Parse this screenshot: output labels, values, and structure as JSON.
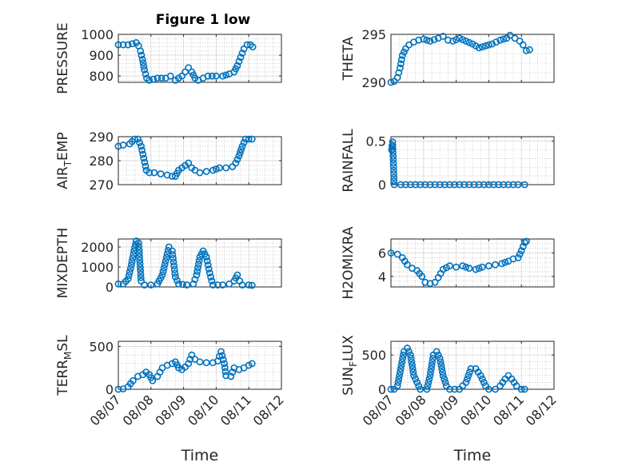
{
  "figure": {
    "title": "Figure 1 low"
  },
  "colors": {
    "marker": "#0072BD",
    "axis": "#262626",
    "grid": "#b0b0b0"
  },
  "chart_data": [
    {
      "type": "scatter",
      "panel": "left-1",
      "title": "Figure 1 low",
      "ylabel": "PRESSURE",
      "ylabel_sub": "",
      "xlim": [
        0,
        5
      ],
      "ylim": [
        770,
        1000
      ],
      "yticks": [
        800,
        900,
        1000
      ],
      "ytick_labels": [
        "800",
        "900",
        "1000"
      ],
      "xticks": [
        0,
        1,
        2,
        3,
        4,
        5
      ],
      "xtick_labels": [],
      "xlabel": "",
      "grid": true,
      "minor_grid": true,
      "points": [
        [
          0.0,
          950
        ],
        [
          0.3,
          950
        ],
        [
          0.55,
          960
        ],
        [
          0.62,
          945
        ],
        [
          0.68,
          920
        ],
        [
          0.74,
          880
        ],
        [
          0.8,
          830
        ],
        [
          0.87,
          790
        ],
        [
          0.95,
          780
        ],
        [
          1.2,
          790
        ],
        [
          1.45,
          790
        ],
        [
          1.6,
          800
        ],
        [
          1.75,
          780
        ],
        [
          1.85,
          790
        ],
        [
          1.95,
          800
        ],
        [
          2.05,
          820
        ],
        [
          2.15,
          840
        ],
        [
          2.25,
          820
        ],
        [
          2.35,
          790
        ],
        [
          2.45,
          780
        ],
        [
          2.6,
          790
        ],
        [
          2.75,
          800
        ],
        [
          3.0,
          800
        ],
        [
          3.2,
          800
        ],
        [
          3.4,
          810
        ],
        [
          3.55,
          820
        ],
        [
          3.65,
          850
        ],
        [
          3.75,
          890
        ],
        [
          3.85,
          930
        ],
        [
          3.95,
          950
        ],
        [
          4.05,
          950
        ],
        [
          4.12,
          940
        ]
      ]
    },
    {
      "type": "scatter",
      "panel": "right-1",
      "ylabel": "THETA",
      "ylabel_sub": "",
      "xlim": [
        0,
        5
      ],
      "ylim": [
        290,
        295
      ],
      "yticks": [
        290,
        295
      ],
      "ytick_labels": [
        "290",
        "295"
      ],
      "xticks": [
        0,
        1,
        2,
        3,
        4,
        5
      ],
      "xtick_labels": [],
      "xlabel": "",
      "grid": true,
      "minor_grid": true,
      "points": [
        [
          0.0,
          290
        ],
        [
          0.1,
          290.1
        ],
        [
          0.2,
          290.5
        ],
        [
          0.28,
          291.5
        ],
        [
          0.35,
          292.8
        ],
        [
          0.45,
          293.5
        ],
        [
          0.55,
          293.9
        ],
        [
          0.7,
          294.2
        ],
        [
          0.85,
          294.4
        ],
        [
          1.0,
          294.5
        ],
        [
          1.2,
          294.3
        ],
        [
          1.45,
          294.6
        ],
        [
          1.6,
          294.8
        ],
        [
          1.75,
          294.4
        ],
        [
          1.9,
          294.3
        ],
        [
          2.1,
          294.6
        ],
        [
          2.3,
          294.3
        ],
        [
          2.5,
          294.0
        ],
        [
          2.7,
          293.6
        ],
        [
          2.9,
          293.8
        ],
        [
          3.1,
          294.0
        ],
        [
          3.35,
          294.4
        ],
        [
          3.55,
          294.6
        ],
        [
          3.65,
          294.9
        ],
        [
          3.8,
          294.6
        ],
        [
          3.95,
          294.3
        ],
        [
          4.05,
          293.9
        ],
        [
          4.15,
          293.3
        ],
        [
          4.25,
          293.4
        ]
      ]
    },
    {
      "type": "scatter",
      "panel": "left-2",
      "ylabel": "AIR",
      "ylabel_sub": "T",
      "ylabel_tail": "EMP",
      "xlim": [
        0,
        5
      ],
      "ylim": [
        270,
        290
      ],
      "yticks": [
        270,
        280,
        290
      ],
      "ytick_labels": [
        "270",
        "280",
        "290"
      ],
      "xticks": [
        0,
        1,
        2,
        3,
        4,
        5
      ],
      "xtick_labels": [],
      "xlabel": "",
      "grid": true,
      "minor_grid": true,
      "points": [
        [
          0.0,
          286
        ],
        [
          0.15,
          286.5
        ],
        [
          0.35,
          287
        ],
        [
          0.5,
          289
        ],
        [
          0.6,
          289
        ],
        [
          0.7,
          286
        ],
        [
          0.78,
          281
        ],
        [
          0.86,
          276
        ],
        [
          0.95,
          275
        ],
        [
          1.1,
          275
        ],
        [
          1.3,
          274.5
        ],
        [
          1.5,
          274
        ],
        [
          1.65,
          273.5
        ],
        [
          1.75,
          273.5
        ],
        [
          1.85,
          276
        ],
        [
          1.95,
          277
        ],
        [
          2.05,
          278
        ],
        [
          2.15,
          279
        ],
        [
          2.25,
          277
        ],
        [
          2.35,
          276
        ],
        [
          2.5,
          275
        ],
        [
          2.7,
          275.5
        ],
        [
          2.9,
          276
        ],
        [
          3.1,
          277
        ],
        [
          3.3,
          277
        ],
        [
          3.5,
          277.5
        ],
        [
          3.6,
          279
        ],
        [
          3.7,
          282
        ],
        [
          3.8,
          286
        ],
        [
          3.9,
          289
        ],
        [
          4.0,
          289
        ],
        [
          4.1,
          289
        ]
      ]
    },
    {
      "type": "scatter",
      "panel": "right-2",
      "ylabel": "RAINFALL",
      "ylabel_sub": "",
      "xlim": [
        0,
        5
      ],
      "ylim": [
        0,
        0.55
      ],
      "yticks": [
        0,
        0.5
      ],
      "ytick_labels": [
        "0",
        "0.5"
      ],
      "xticks": [
        0,
        1,
        2,
        3,
        4,
        5
      ],
      "xtick_labels": [],
      "xlabel": "",
      "grid": true,
      "minor_grid": true,
      "points": [
        [
          0.02,
          0.4
        ],
        [
          0.05,
          0.49
        ],
        [
          0.1,
          0
        ],
        [
          0.3,
          0
        ],
        [
          0.6,
          0
        ],
        [
          0.9,
          0
        ],
        [
          1.2,
          0
        ],
        [
          1.5,
          0
        ],
        [
          1.8,
          0
        ],
        [
          2.1,
          0
        ],
        [
          2.4,
          0
        ],
        [
          2.7,
          0
        ],
        [
          3.0,
          0
        ],
        [
          3.3,
          0
        ],
        [
          3.6,
          0
        ],
        [
          3.9,
          0
        ],
        [
          4.1,
          0
        ]
      ]
    },
    {
      "type": "scatter",
      "panel": "left-3",
      "ylabel": "MIXDEPTH",
      "ylabel_sub": "",
      "xlim": [
        0,
        5
      ],
      "ylim": [
        0,
        2400
      ],
      "yticks": [
        0,
        1000,
        2000
      ],
      "ytick_labels": [
        "0",
        "1000",
        "2000"
      ],
      "xticks": [
        0,
        1,
        2,
        3,
        4,
        5
      ],
      "xtick_labels": [],
      "xlabel": "",
      "grid": true,
      "minor_grid": true,
      "points": [
        [
          0.0,
          150
        ],
        [
          0.15,
          150
        ],
        [
          0.3,
          400
        ],
        [
          0.4,
          1100
        ],
        [
          0.48,
          1800
        ],
        [
          0.55,
          2300
        ],
        [
          0.62,
          2200
        ],
        [
          0.7,
          300
        ],
        [
          0.8,
          100
        ],
        [
          1.0,
          100
        ],
        [
          1.2,
          150
        ],
        [
          1.35,
          600
        ],
        [
          1.45,
          1300
        ],
        [
          1.55,
          2000
        ],
        [
          1.65,
          1800
        ],
        [
          1.75,
          500
        ],
        [
          1.85,
          150
        ],
        [
          2.1,
          100
        ],
        [
          2.3,
          150
        ],
        [
          2.4,
          600
        ],
        [
          2.5,
          1500
        ],
        [
          2.6,
          1800
        ],
        [
          2.7,
          1500
        ],
        [
          2.8,
          700
        ],
        [
          2.9,
          100
        ],
        [
          3.2,
          100
        ],
        [
          3.4,
          150
        ],
        [
          3.55,
          300
        ],
        [
          3.65,
          600
        ],
        [
          3.72,
          300
        ],
        [
          3.8,
          100
        ],
        [
          4.0,
          100
        ],
        [
          4.1,
          80
        ]
      ]
    },
    {
      "type": "scatter",
      "panel": "right-3",
      "ylabel": "H2OMIXRA",
      "ylabel_sub": "",
      "xlim": [
        0,
        5
      ],
      "ylim": [
        3.1,
        7.2
      ],
      "yticks": [
        4,
        6
      ],
      "ytick_labels": [
        "4",
        "6"
      ],
      "xticks": [
        0,
        1,
        2,
        3,
        4,
        5
      ],
      "xtick_labels": [],
      "xlabel": "",
      "grid": true,
      "minor_grid": true,
      "points": [
        [
          0.0,
          6.0
        ],
        [
          0.2,
          5.9
        ],
        [
          0.35,
          5.6
        ],
        [
          0.5,
          5.0
        ],
        [
          0.65,
          4.7
        ],
        [
          0.8,
          4.5
        ],
        [
          0.95,
          4.0
        ],
        [
          1.05,
          3.5
        ],
        [
          1.2,
          3.4
        ],
        [
          1.35,
          3.5
        ],
        [
          1.45,
          3.9
        ],
        [
          1.6,
          4.6
        ],
        [
          1.8,
          4.9
        ],
        [
          2.0,
          4.8
        ],
        [
          2.2,
          4.9
        ],
        [
          2.4,
          4.7
        ],
        [
          2.6,
          4.6
        ],
        [
          2.8,
          4.8
        ],
        [
          3.0,
          4.9
        ],
        [
          3.2,
          5.0
        ],
        [
          3.4,
          5.1
        ],
        [
          3.6,
          5.3
        ],
        [
          3.75,
          5.5
        ],
        [
          3.9,
          5.6
        ],
        [
          4.0,
          6.2
        ],
        [
          4.1,
          6.9
        ],
        [
          4.15,
          7.0
        ]
      ]
    },
    {
      "type": "scatter",
      "panel": "left-4",
      "ylabel": "TERR",
      "ylabel_sub": "M",
      "ylabel_tail": "SL",
      "xlim": [
        0,
        5
      ],
      "ylim": [
        0,
        560
      ],
      "yticks": [
        0,
        500
      ],
      "ytick_labels": [
        "0",
        "500"
      ],
      "xticks": [
        0,
        1,
        2,
        3,
        4,
        5
      ],
      "xtick_labels": [
        "08/07",
        "08/08",
        "08/09",
        "08/10",
        "08/11",
        "08/12"
      ],
      "xlabel": "Time",
      "grid": true,
      "minor_grid": true,
      "points": [
        [
          0.0,
          0
        ],
        [
          0.15,
          5
        ],
        [
          0.3,
          30
        ],
        [
          0.45,
          100
        ],
        [
          0.6,
          150
        ],
        [
          0.75,
          170
        ],
        [
          0.85,
          200
        ],
        [
          0.95,
          170
        ],
        [
          1.05,
          100
        ],
        [
          1.2,
          150
        ],
        [
          1.35,
          250
        ],
        [
          1.5,
          280
        ],
        [
          1.65,
          300
        ],
        [
          1.75,
          320
        ],
        [
          1.85,
          250
        ],
        [
          1.95,
          230
        ],
        [
          2.05,
          260
        ],
        [
          2.15,
          300
        ],
        [
          2.25,
          400
        ],
        [
          2.35,
          350
        ],
        [
          2.5,
          320
        ],
        [
          2.7,
          310
        ],
        [
          2.9,
          310
        ],
        [
          3.05,
          330
        ],
        [
          3.15,
          440
        ],
        [
          3.25,
          300
        ],
        [
          3.3,
          160
        ],
        [
          3.45,
          150
        ],
        [
          3.55,
          250
        ],
        [
          3.7,
          230
        ],
        [
          3.85,
          250
        ],
        [
          4.0,
          280
        ],
        [
          4.1,
          300
        ]
      ]
    },
    {
      "type": "scatter",
      "panel": "right-4",
      "ylabel": "SUN",
      "ylabel_sub": "F",
      "ylabel_tail": "LUX",
      "xlim": [
        0,
        5
      ],
      "ylim": [
        0,
        700
      ],
      "yticks": [
        0,
        500
      ],
      "ytick_labels": [
        "0",
        "500"
      ],
      "xticks": [
        0,
        1,
        2,
        3,
        4,
        5
      ],
      "xtick_labels": [
        "08/07",
        "08/08",
        "08/09",
        "08/10",
        "08/11",
        "08/12"
      ],
      "xlabel": "Time",
      "grid": true,
      "minor_grid": true,
      "points": [
        [
          0.0,
          0
        ],
        [
          0.1,
          0
        ],
        [
          0.2,
          50
        ],
        [
          0.3,
          300
        ],
        [
          0.4,
          550
        ],
        [
          0.5,
          600
        ],
        [
          0.6,
          500
        ],
        [
          0.7,
          200
        ],
        [
          0.8,
          100
        ],
        [
          0.9,
          0
        ],
        [
          1.1,
          0
        ],
        [
          1.2,
          200
        ],
        [
          1.3,
          500
        ],
        [
          1.4,
          550
        ],
        [
          1.5,
          450
        ],
        [
          1.6,
          200
        ],
        [
          1.7,
          50
        ],
        [
          1.8,
          0
        ],
        [
          2.1,
          0
        ],
        [
          2.3,
          100
        ],
        [
          2.45,
          300
        ],
        [
          2.6,
          300
        ],
        [
          2.75,
          200
        ],
        [
          2.9,
          50
        ],
        [
          3.0,
          0
        ],
        [
          3.2,
          0
        ],
        [
          3.35,
          50
        ],
        [
          3.5,
          150
        ],
        [
          3.6,
          200
        ],
        [
          3.7,
          150
        ],
        [
          3.85,
          50
        ],
        [
          4.0,
          0
        ],
        [
          4.1,
          0
        ]
      ]
    }
  ]
}
